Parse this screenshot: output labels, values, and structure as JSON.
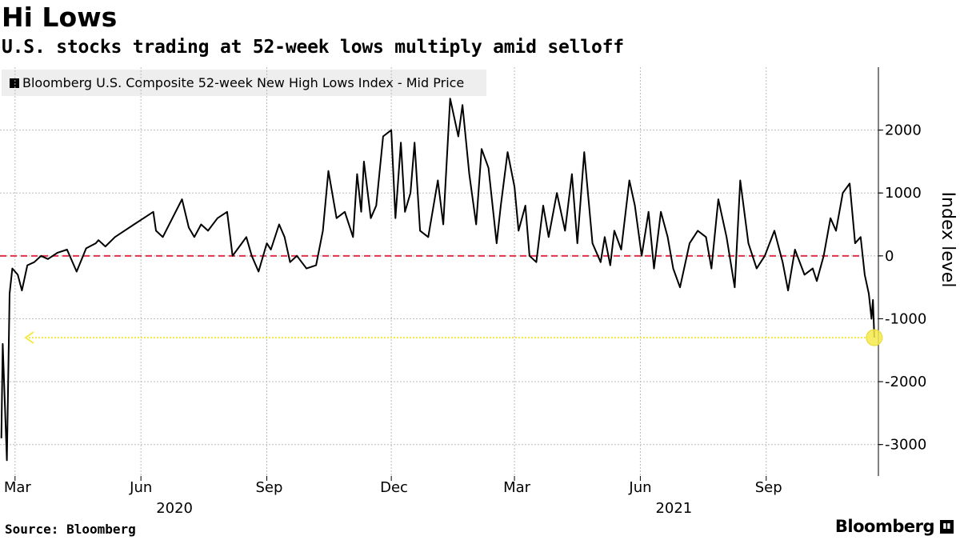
{
  "header": {
    "title": "Hi Lows",
    "subtitle": "U.S. stocks trading at 52-week lows multiply amid selloff"
  },
  "footer": {
    "source": "Source: Bloomberg",
    "brand": "Bloomberg"
  },
  "colors": {
    "line": "#000000",
    "zero_line": "#e0304a",
    "highlight": "#f5e94a",
    "grid": "#bbbbbb"
  },
  "chart_data": {
    "type": "line",
    "legend_position": "top-left",
    "grid": true,
    "ylabel": "Index level",
    "ylim": [
      -3500,
      3000
    ],
    "yticks": [
      2000,
      1000,
      0,
      -1000,
      -2000,
      -3000
    ],
    "ytick_labels": [
      "2000",
      "1000",
      "0",
      "-1000",
      "-2000",
      "-3000"
    ],
    "xlim": [
      "2020-02-19",
      "2021-11-22"
    ],
    "xticks": [
      {
        "date": "2020-03-01",
        "label": "Mar"
      },
      {
        "date": "2020-06-01",
        "label": "Jun"
      },
      {
        "date": "2020-09-01",
        "label": "Sep"
      },
      {
        "date": "2020-12-01",
        "label": "Dec"
      },
      {
        "date": "2021-03-01",
        "label": "Mar"
      },
      {
        "date": "2021-06-01",
        "label": "Jun"
      },
      {
        "date": "2021-09-01",
        "label": "Sep"
      }
    ],
    "year_labels": [
      {
        "date": "2020-06-25",
        "label": "2020"
      },
      {
        "date": "2021-06-25",
        "label": "2021"
      }
    ],
    "reference_line": 0,
    "highlight_value": -1300,
    "series": [
      {
        "name": "Bloomberg U.S. Composite 52-week New High Lows Index - Mid Price",
        "x": [
          "2020-02-20",
          "2020-02-21",
          "2020-02-24",
          "2020-02-26",
          "2020-02-28",
          "2020-03-03",
          "2020-03-06",
          "2020-03-10",
          "2020-03-15",
          "2020-03-20",
          "2020-03-25",
          "2020-04-01",
          "2020-04-08",
          "2020-04-15",
          "2020-04-22",
          "2020-04-29",
          "2020-05-01",
          "2020-05-06",
          "2020-05-13",
          "2020-05-20",
          "2020-05-27",
          "2020-06-03",
          "2020-06-10",
          "2020-06-12",
          "2020-06-17",
          "2020-06-24",
          "2020-07-01",
          "2020-07-06",
          "2020-07-10",
          "2020-07-15",
          "2020-07-20",
          "2020-07-27",
          "2020-08-03",
          "2020-08-07",
          "2020-08-12",
          "2020-08-17",
          "2020-08-21",
          "2020-08-26",
          "2020-09-01",
          "2020-09-04",
          "2020-09-10",
          "2020-09-14",
          "2020-09-18",
          "2020-09-23",
          "2020-09-30",
          "2020-10-07",
          "2020-10-12",
          "2020-10-16",
          "2020-10-22",
          "2020-10-28",
          "2020-11-03",
          "2020-11-06",
          "2020-11-09",
          "2020-11-11",
          "2020-11-16",
          "2020-11-20",
          "2020-11-25",
          "2020-12-01",
          "2020-12-04",
          "2020-12-08",
          "2020-12-11",
          "2020-12-15",
          "2020-12-18",
          "2020-12-22",
          "2020-12-28",
          "2021-01-04",
          "2021-01-08",
          "2021-01-13",
          "2021-01-19",
          "2021-01-22",
          "2021-01-27",
          "2021-02-01",
          "2021-02-05",
          "2021-02-10",
          "2021-02-16",
          "2021-02-19",
          "2021-02-24",
          "2021-03-01",
          "2021-03-04",
          "2021-03-09",
          "2021-03-12",
          "2021-03-17",
          "2021-03-22",
          "2021-03-26",
          "2021-04-01",
          "2021-04-07",
          "2021-04-12",
          "2021-04-16",
          "2021-04-21",
          "2021-04-27",
          "2021-05-03",
          "2021-05-06",
          "2021-05-10",
          "2021-05-13",
          "2021-05-18",
          "2021-05-24",
          "2021-05-28",
          "2021-06-02",
          "2021-06-07",
          "2021-06-11",
          "2021-06-16",
          "2021-06-21",
          "2021-06-25",
          "2021-06-30",
          "2021-07-07",
          "2021-07-13",
          "2021-07-19",
          "2021-07-23",
          "2021-07-28",
          "2021-08-03",
          "2021-08-09",
          "2021-08-13",
          "2021-08-19",
          "2021-08-25",
          "2021-08-31",
          "2021-09-07",
          "2021-09-13",
          "2021-09-17",
          "2021-09-22",
          "2021-09-29",
          "2021-10-05",
          "2021-10-08",
          "2021-10-13",
          "2021-10-18",
          "2021-10-22",
          "2021-10-27",
          "2021-11-01",
          "2021-11-05",
          "2021-11-09",
          "2021-11-12",
          "2021-11-15",
          "2021-11-17",
          "2021-11-18",
          "2021-11-19"
        ],
        "y": [
          -2900,
          -1400,
          -3250,
          -600,
          -200,
          -300,
          -550,
          -150,
          -100,
          0,
          -50,
          50,
          100,
          -250,
          120,
          200,
          250,
          150,
          300,
          400,
          500,
          600,
          700,
          400,
          300,
          600,
          900,
          450,
          300,
          500,
          400,
          600,
          700,
          0,
          150,
          300,
          0,
          -250,
          200,
          100,
          500,
          300,
          -100,
          0,
          -200,
          -150,
          400,
          1350,
          600,
          700,
          300,
          1300,
          700,
          1500,
          600,
          800,
          1900,
          2000,
          600,
          1800,
          700,
          1000,
          1800,
          400,
          300,
          1200,
          500,
          2500,
          1900,
          2400,
          1300,
          500,
          1700,
          1400,
          200,
          800,
          1650,
          1100,
          400,
          800,
          0,
          -100,
          800,
          300,
          1000,
          400,
          1300,
          200,
          1650,
          200,
          -100,
          300,
          -150,
          400,
          100,
          1200,
          800,
          0,
          700,
          -200,
          700,
          300,
          -200,
          -500,
          200,
          400,
          300,
          -200,
          900,
          300,
          -500,
          1200,
          200,
          -200,
          0,
          400,
          -100,
          -550,
          100,
          -300,
          -200,
          -400,
          0,
          600,
          400,
          1000,
          1150,
          200,
          300,
          -300,
          -600,
          -1000,
          -700,
          -1300
        ]
      }
    ]
  }
}
